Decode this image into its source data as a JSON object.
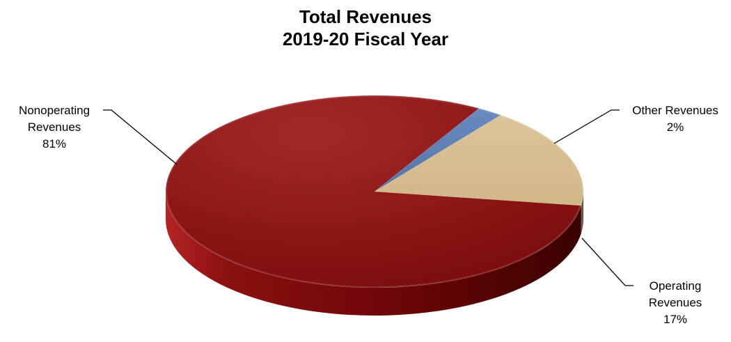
{
  "chart_data": {
    "type": "pie",
    "title": "Total Revenues",
    "subtitle": "2019-20 Fiscal Year",
    "slices": [
      {
        "name": "Other Revenues",
        "label_lines": [
          "Other Revenues"
        ],
        "pct_label": "2%",
        "value": 2,
        "color": "#5a7bb0",
        "side_color": "#3d5680"
      },
      {
        "name": "Operating Revenues",
        "label_lines": [
          "Operating",
          "Revenues"
        ],
        "pct_label": "17%",
        "value": 17,
        "color": "#d6bc8e",
        "side_color": "#6b5b43"
      },
      {
        "name": "Nonoperating Revenues",
        "label_lines": [
          "Nonoperating",
          "Revenues"
        ],
        "pct_label": "81%",
        "value": 81,
        "color": "#8e1a1a",
        "side_color": "#7a0e0e"
      }
    ],
    "legend": "none",
    "style": "3d"
  }
}
